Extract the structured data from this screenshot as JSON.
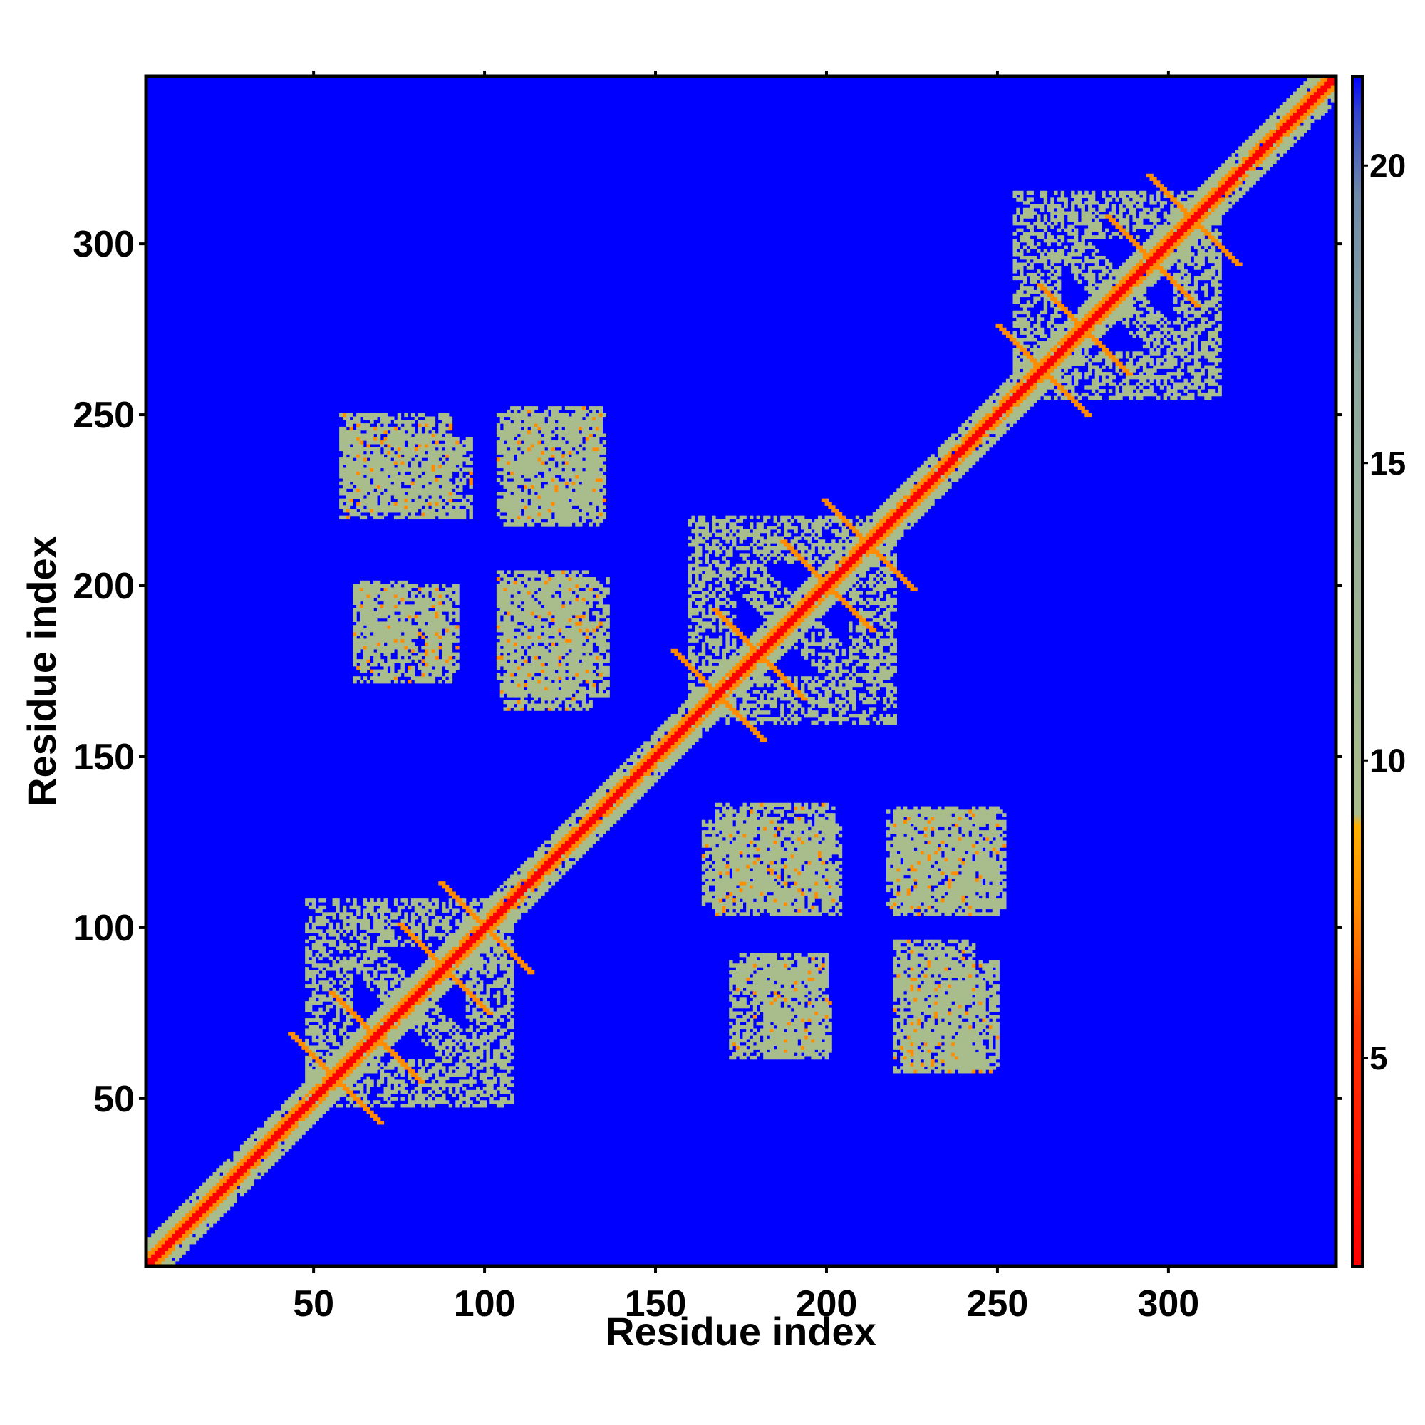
{
  "chart_data": {
    "type": "heatmap",
    "title": "",
    "xlabel": "Residue index",
    "ylabel": "Residue index",
    "xlim": [
      1,
      349
    ],
    "ylim": [
      1,
      349
    ],
    "x_ticks": [
      50,
      100,
      150,
      200,
      250,
      300
    ],
    "y_ticks": [
      50,
      100,
      150,
      200,
      250,
      300
    ],
    "colorbar": {
      "range": [
        1.5,
        21.5
      ],
      "ticks": [
        5,
        10,
        15,
        20
      ],
      "colors": {
        "red": "#ff0000",
        "orange": "#ff8c00",
        "gold": "#ffb000",
        "sage": "#a9bd8c",
        "slate": "#6f8aa8",
        "background": "#0000ff"
      }
    },
    "background_value": 21,
    "features": [
      {
        "type": "diagonal_band",
        "value": 2,
        "width": 1.5
      },
      {
        "type": "diagonal_band",
        "value": 6,
        "width": 3
      },
      {
        "type": "diagonal_band",
        "value": 10,
        "width": 7
      },
      {
        "type": "helix_bundle",
        "center": [
          78,
          78
        ],
        "half_width": 30,
        "value": 10
      },
      {
        "type": "helix_bundle",
        "center": [
          190,
          190
        ],
        "half_width": 30,
        "value": 10
      },
      {
        "type": "helix_bundle",
        "center": [
          285,
          285
        ],
        "half_width": 30,
        "value": 10
      },
      {
        "type": "anti_lines",
        "center": [
          78,
          78
        ],
        "offsets": [
          -22,
          -10,
          10,
          22
        ],
        "length": 26,
        "value": 6
      },
      {
        "type": "anti_lines",
        "center": [
          190,
          190
        ],
        "offsets": [
          -22,
          -10,
          10,
          22
        ],
        "length": 26,
        "value": 6
      },
      {
        "type": "anti_lines",
        "center": [
          285,
          285
        ],
        "offsets": [
          -22,
          -10,
          10,
          22
        ],
        "length": 26,
        "value": 6
      },
      {
        "type": "patch",
        "x": [
          58,
          80
        ],
        "y": [
          222,
          246
        ],
        "value": 10
      },
      {
        "type": "patch",
        "x": [
          80,
          96
        ],
        "y": [
          220,
          243
        ],
        "value": 10
      },
      {
        "type": "patch",
        "x": [
          104,
          135
        ],
        "y": [
          220,
          250
        ],
        "value": 10
      },
      {
        "type": "patch",
        "x": [
          62,
          78
        ],
        "y": [
          182,
          201
        ],
        "value": 10
      },
      {
        "type": "patch",
        "x": [
          82,
          92
        ],
        "y": [
          175,
          200
        ],
        "value": 10
      },
      {
        "type": "patch",
        "x": [
          104,
          136
        ],
        "y": [
          168,
          202
        ],
        "value": 10
      },
      {
        "type": "patch",
        "x": [
          164,
          184
        ],
        "y": [
          106,
          131
        ],
        "value": 10
      },
      {
        "type": "patch",
        "x": [
          184,
          204
        ],
        "y": [
          104,
          130
        ],
        "value": 10
      },
      {
        "type": "patch",
        "x": [
          218,
          252
        ],
        "y": [
          106,
          134
        ],
        "value": 10
      },
      {
        "type": "patch",
        "x": [
          172,
          188
        ],
        "y": [
          62,
          90
        ],
        "value": 10
      },
      {
        "type": "patch",
        "x": [
          188,
          200
        ],
        "y": [
          62,
          88
        ],
        "value": 10
      },
      {
        "type": "patch",
        "x": [
          220,
          250
        ],
        "y": [
          58,
          90
        ],
        "value": 10
      }
    ]
  }
}
